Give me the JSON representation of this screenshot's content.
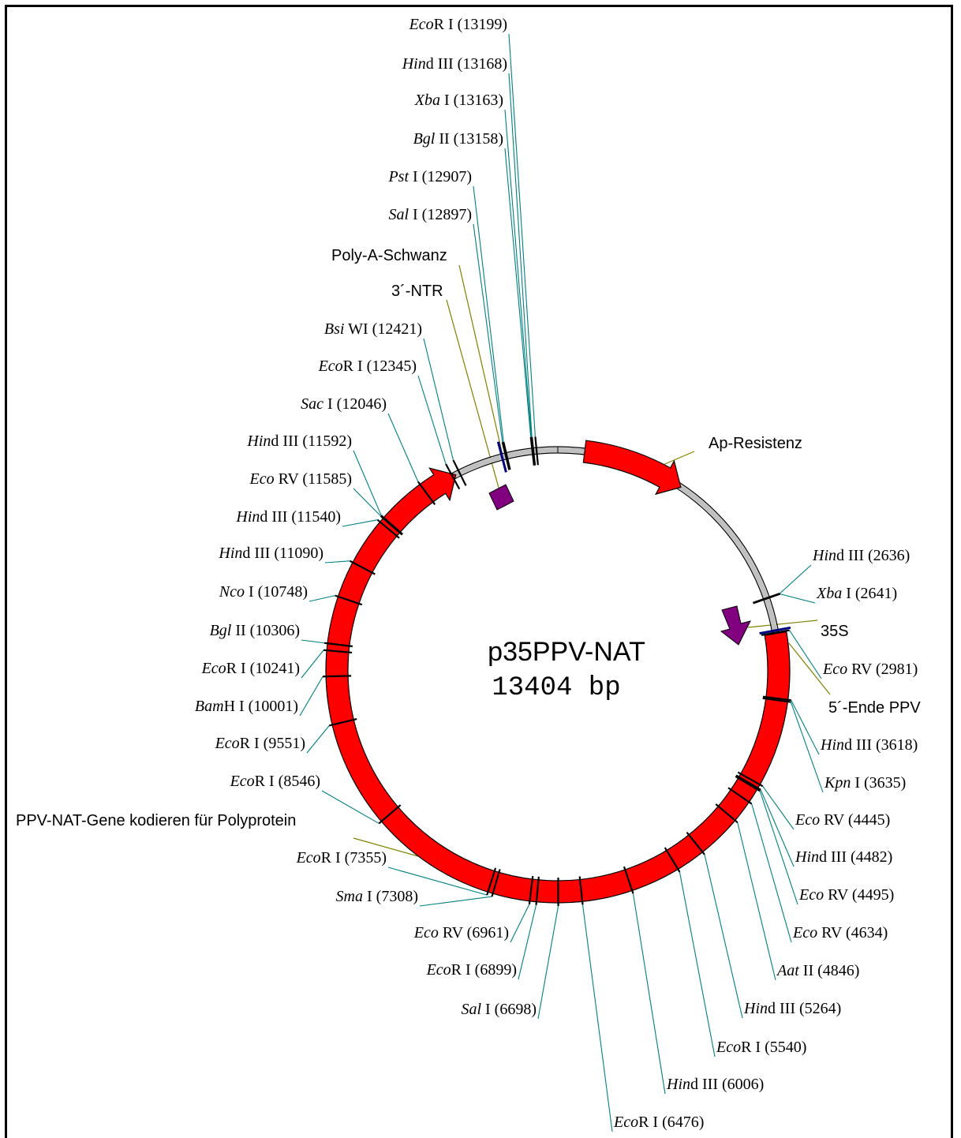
{
  "plasmid": {
    "name": "p35PPV-NAT",
    "size_label": "13404 bp",
    "length_bp": 13404
  },
  "colors": {
    "backbone": "#c0c0c0",
    "feature_red": "#ff0000",
    "feature_purple": "#800080",
    "site_tick": "#000000",
    "leader_site": "#008080",
    "leader_feature": "#808000"
  },
  "features": [
    {
      "id": "ap-resistenz",
      "label": "Ap-Resistenz",
      "kind": "arrow",
      "color": "#ff0000",
      "direction": "cw",
      "start_bp": 260,
      "end_bp": 1260
    },
    {
      "id": "ppv-nat",
      "label": "PPV-NAT-Gene kodieren für Polyprotein",
      "kind": "arrow",
      "color": "#ff0000",
      "direction": "cw",
      "start_bp": 2990,
      "end_bp": 12380
    },
    {
      "id": "35s",
      "label": "35S",
      "kind": "promoter",
      "color": "#800080"
    },
    {
      "id": "5-ende-ppv",
      "label": "5´-Ende PPV",
      "kind": "tick",
      "color": "#000080",
      "position_bp": 2960
    },
    {
      "id": "3-ntr",
      "label": "3´-NTR",
      "kind": "box",
      "color": "#800080"
    },
    {
      "id": "poly-a",
      "label": "Poly-A-Schwanz",
      "kind": "tick",
      "color": "#000080",
      "position_bp": 12860
    }
  ],
  "sites": [
    {
      "enzyme_italic": "Eco",
      "enzyme_rest": "R I",
      "position": 13199
    },
    {
      "enzyme_italic": "Hin",
      "enzyme_rest": "d III",
      "position": 13168
    },
    {
      "enzyme_italic": "Xba",
      "enzyme_rest": " I",
      "position": 13163
    },
    {
      "enzyme_italic": "Bgl",
      "enzyme_rest": " II",
      "position": 13158
    },
    {
      "enzyme_italic": "Pst",
      "enzyme_rest": " I",
      "position": 12907
    },
    {
      "enzyme_italic": "Sal",
      "enzyme_rest": " I",
      "position": 12897
    },
    {
      "enzyme_italic": "Bsi",
      "enzyme_rest": " WI",
      "position": 12421
    },
    {
      "enzyme_italic": "Eco",
      "enzyme_rest": "R I",
      "position": 12345
    },
    {
      "enzyme_italic": "Sac",
      "enzyme_rest": " I",
      "position": 12046
    },
    {
      "enzyme_italic": "Hin",
      "enzyme_rest": "d III",
      "position": 11592
    },
    {
      "enzyme_italic": "Eco",
      "enzyme_rest": " RV",
      "position": 11585
    },
    {
      "enzyme_italic": "Hin",
      "enzyme_rest": "d III",
      "position": 11540
    },
    {
      "enzyme_italic": "Hin",
      "enzyme_rest": "d III",
      "position": 11090
    },
    {
      "enzyme_italic": "Nco",
      "enzyme_rest": " I",
      "position": 10748
    },
    {
      "enzyme_italic": "Bgl",
      "enzyme_rest": " II",
      "position": 10306
    },
    {
      "enzyme_italic": "Eco",
      "enzyme_rest": "R I",
      "position": 10241
    },
    {
      "enzyme_italic": "Bam",
      "enzyme_rest": "H I",
      "position": 10001
    },
    {
      "enzyme_italic": "Eco",
      "enzyme_rest": "R I",
      "position": 9551
    },
    {
      "enzyme_italic": "Eco",
      "enzyme_rest": "R I",
      "position": 8546
    },
    {
      "enzyme_italic": "Eco",
      "enzyme_rest": "R I",
      "position": 7355
    },
    {
      "enzyme_italic": "Sma",
      "enzyme_rest": " I",
      "position": 7308
    },
    {
      "enzyme_italic": "Eco",
      "enzyme_rest": " RV",
      "position": 6961
    },
    {
      "enzyme_italic": "Eco",
      "enzyme_rest": "R I",
      "position": 6899
    },
    {
      "enzyme_italic": "Sal",
      "enzyme_rest": " I",
      "position": 6698
    },
    {
      "enzyme_italic": "Eco",
      "enzyme_rest": "R I",
      "position": 6476
    },
    {
      "enzyme_italic": "Hin",
      "enzyme_rest": "d III",
      "position": 6006
    },
    {
      "enzyme_italic": "Eco",
      "enzyme_rest": "R I",
      "position": 5540
    },
    {
      "enzyme_italic": "Hin",
      "enzyme_rest": "d III",
      "position": 5264
    },
    {
      "enzyme_italic": "Aat",
      "enzyme_rest": " II",
      "position": 4846
    },
    {
      "enzyme_italic": "Eco",
      "enzyme_rest": " RV",
      "position": 4634
    },
    {
      "enzyme_italic": "Eco",
      "enzyme_rest": " RV",
      "position": 4495
    },
    {
      "enzyme_italic": "Hin",
      "enzyme_rest": "d III",
      "position": 4482
    },
    {
      "enzyme_italic": "Eco",
      "enzyme_rest": " RV",
      "position": 4445
    },
    {
      "enzyme_italic": "Kpn",
      "enzyme_rest": " I",
      "position": 3635
    },
    {
      "enzyme_italic": "Hin",
      "enzyme_rest": "d III",
      "position": 3618
    },
    {
      "enzyme_italic": "Eco",
      "enzyme_rest": " RV",
      "position": 2981
    },
    {
      "enzyme_italic": "Xba",
      "enzyme_rest": " I",
      "position": 2641
    },
    {
      "enzyme_italic": "Hin",
      "enzyme_rest": "d III",
      "position": 2636
    }
  ]
}
